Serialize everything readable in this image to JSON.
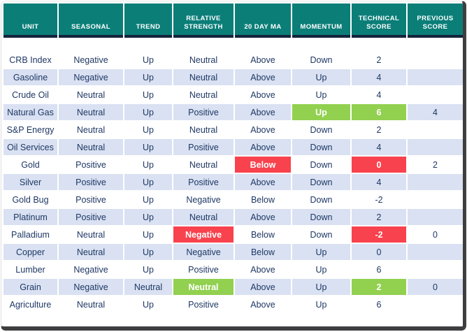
{
  "colors": {
    "header_bg": "#0B7E78",
    "header_text": "#FFFFFF",
    "divider_line": "#15233C",
    "body_text": "#1F3864",
    "stripe_row": "#D9E1F2",
    "white_row": "#FFFFFF",
    "highlight_green": "#92D050",
    "highlight_red": "#F8424D",
    "frame_border": "#3E3E40"
  },
  "chart_data": {
    "type": "table",
    "columns": [
      {
        "key": "unit",
        "label": "UNIT"
      },
      {
        "key": "seasonal",
        "label": "SEASONAL"
      },
      {
        "key": "trend",
        "label": "TREND"
      },
      {
        "key": "relative_strength",
        "label": "RELATIVE STRENGTH"
      },
      {
        "key": "ma20",
        "label": "20 DAY MA"
      },
      {
        "key": "momentum",
        "label": "MOMENTUM"
      },
      {
        "key": "technical_score",
        "label": "TECHNICAL SCORE"
      },
      {
        "key": "previous_score",
        "label": "PREVIOUS SCORE"
      }
    ],
    "rows": [
      {
        "unit": "CRB Index",
        "seasonal": "Negative",
        "trend": "Up",
        "relative_strength": "Neutral",
        "ma20": "Above",
        "momentum": "Down",
        "technical_score": "2",
        "previous_score": "",
        "highlights": {}
      },
      {
        "unit": "Gasoline",
        "seasonal": "Negative",
        "trend": "Up",
        "relative_strength": "Neutral",
        "ma20": "Above",
        "momentum": "Up",
        "technical_score": "4",
        "previous_score": "",
        "highlights": {}
      },
      {
        "unit": "Crude Oil",
        "seasonal": "Neutral",
        "trend": "Up",
        "relative_strength": "Neutral",
        "ma20": "Above",
        "momentum": "Up",
        "technical_score": "4",
        "previous_score": "",
        "highlights": {}
      },
      {
        "unit": "Natural Gas",
        "seasonal": "Neutral",
        "trend": "Up",
        "relative_strength": "Positive",
        "ma20": "Above",
        "momentum": "Up",
        "technical_score": "6",
        "previous_score": "4",
        "highlights": {
          "momentum": "green",
          "technical_score": "green"
        }
      },
      {
        "unit": "S&P Energy",
        "seasonal": "Neutral",
        "trend": "Up",
        "relative_strength": "Neutral",
        "ma20": "Above",
        "momentum": "Down",
        "technical_score": "2",
        "previous_score": "",
        "highlights": {}
      },
      {
        "unit": "Oil Services",
        "seasonal": "Neutral",
        "trend": "Up",
        "relative_strength": "Positive",
        "ma20": "Above",
        "momentum": "Down",
        "technical_score": "4",
        "previous_score": "",
        "highlights": {}
      },
      {
        "unit": "Gold",
        "seasonal": "Positive",
        "trend": "Up",
        "relative_strength": "Neutral",
        "ma20": "Below",
        "momentum": "Down",
        "technical_score": "0",
        "previous_score": "2",
        "highlights": {
          "ma20": "red",
          "technical_score": "red"
        }
      },
      {
        "unit": "Silver",
        "seasonal": "Positive",
        "trend": "Up",
        "relative_strength": "Positive",
        "ma20": "Above",
        "momentum": "Down",
        "technical_score": "4",
        "previous_score": "",
        "highlights": {}
      },
      {
        "unit": "Gold Bug",
        "seasonal": "Positive",
        "trend": "Up",
        "relative_strength": "Negative",
        "ma20": "Below",
        "momentum": "Down",
        "technical_score": "-2",
        "previous_score": "",
        "highlights": {}
      },
      {
        "unit": "Platinum",
        "seasonal": "Positive",
        "trend": "Up",
        "relative_strength": "Neutral",
        "ma20": "Above",
        "momentum": "Down",
        "technical_score": "2",
        "previous_score": "",
        "highlights": {}
      },
      {
        "unit": "Palladium",
        "seasonal": "Neutral",
        "trend": "Up",
        "relative_strength": "Negative",
        "ma20": "Below",
        "momentum": "Down",
        "technical_score": "-2",
        "previous_score": "0",
        "highlights": {
          "relative_strength": "red",
          "technical_score": "red"
        }
      },
      {
        "unit": "Copper",
        "seasonal": "Neutral",
        "trend": "Up",
        "relative_strength": "Negative",
        "ma20": "Below",
        "momentum": "Up",
        "technical_score": "0",
        "previous_score": "",
        "highlights": {}
      },
      {
        "unit": "Lumber",
        "seasonal": "Negative",
        "trend": "Up",
        "relative_strength": "Positive",
        "ma20": "Above",
        "momentum": "Up",
        "technical_score": "6",
        "previous_score": "",
        "highlights": {}
      },
      {
        "unit": "Grain",
        "seasonal": "Negative",
        "trend": "Neutral",
        "relative_strength": "Neutral",
        "ma20": "Above",
        "momentum": "Up",
        "technical_score": "2",
        "previous_score": "0",
        "highlights": {
          "relative_strength": "green",
          "technical_score": "green"
        }
      },
      {
        "unit": "Agriculture",
        "seasonal": "Neutral",
        "trend": "Up",
        "relative_strength": "Positive",
        "ma20": "Above",
        "momentum": "Up",
        "technical_score": "6",
        "previous_score": "",
        "highlights": {}
      }
    ]
  }
}
